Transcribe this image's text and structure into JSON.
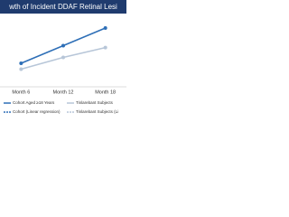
{
  "chart_data": {
    "type": "line",
    "title": "wth of Incident DDAF Retinal Lesi",
    "categories": [
      "Month 6",
      "Month 12",
      "Month 18"
    ],
    "series": [
      {
        "name": "Cohort Aged ≥18 Years",
        "color": "#2e6fb7",
        "values": [
          1.2,
          2.1,
          3.0
        ]
      },
      {
        "name": "Tinlarebant Subjects",
        "color": "#b7c6d8",
        "values": [
          0.9,
          1.5,
          2.0
        ]
      }
    ],
    "legend_extra": [
      "Cohort (Linear regression)",
      "Tinlarebant Subjects (Li"
    ],
    "ylim": [
      0,
      3.6
    ]
  }
}
